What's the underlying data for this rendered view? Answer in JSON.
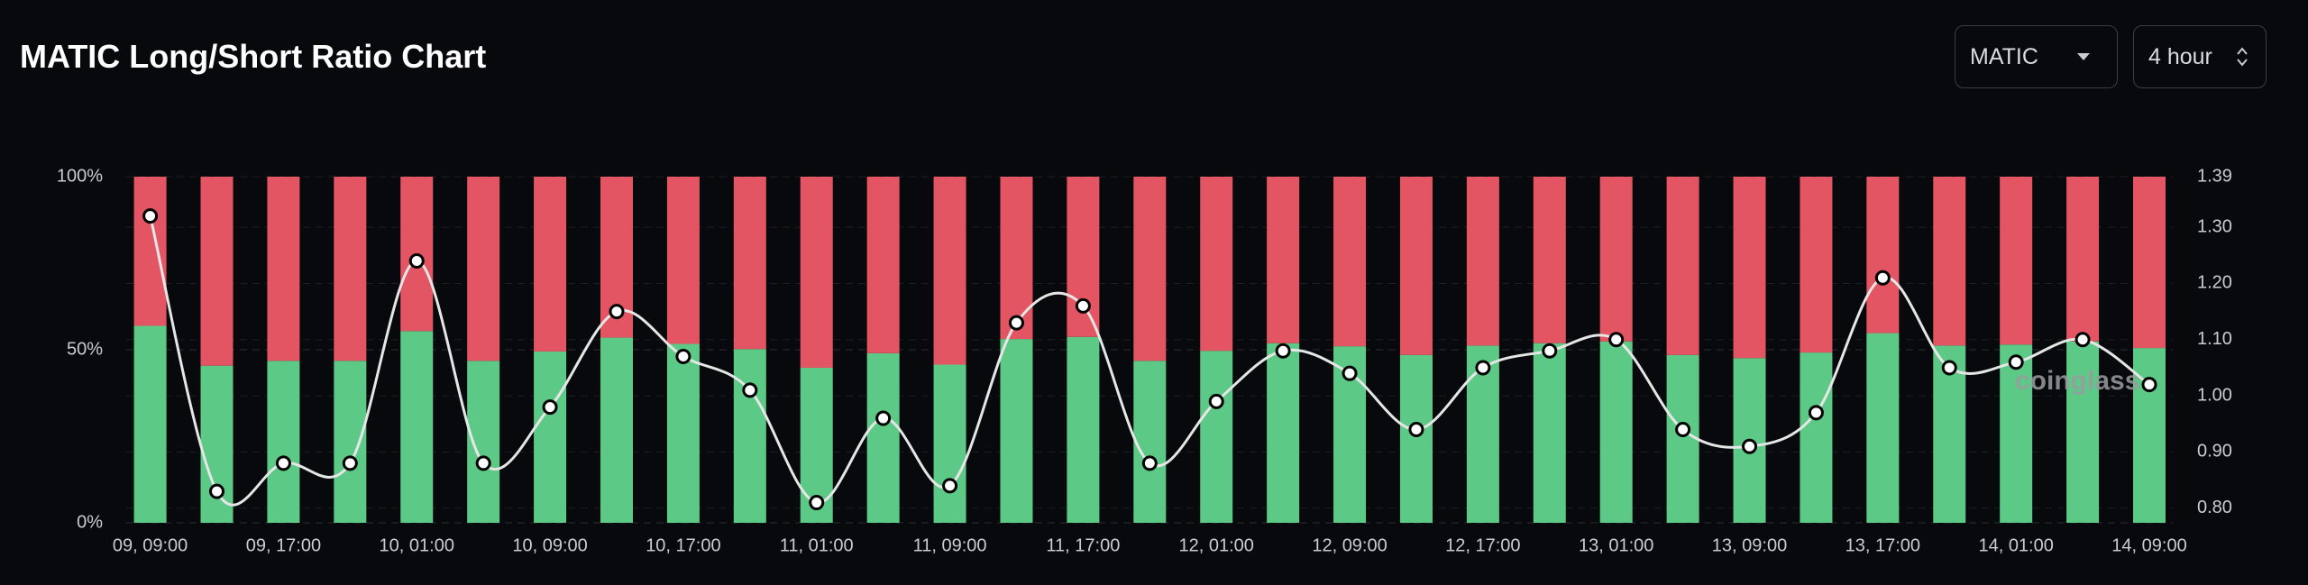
{
  "header": {
    "title": "MATIC Long/Short Ratio Chart",
    "symbol": "MATIC",
    "interval": "4 hour"
  },
  "chart_data": {
    "type": "stacked-bar-line",
    "watermark": "coinglass",
    "categories": [
      "09, 09:00",
      null,
      "09, 17:00",
      null,
      "10, 01:00",
      null,
      "10, 09:00",
      null,
      "10, 17:00",
      null,
      "11, 01:00",
      null,
      "11, 09:00",
      null,
      "11, 17:00",
      null,
      "12, 01:00",
      null,
      "12, 09:00",
      null,
      "12, 17:00",
      null,
      "13, 01:00",
      null,
      "13, 09:00",
      null,
      "13, 17:00",
      null,
      "14, 01:00",
      null,
      "14, 09:00"
    ],
    "series": [
      {
        "color": "#5cc986",
        "values": [
          56.9,
          45.4,
          46.8,
          46.8,
          55.4,
          46.8,
          49.5,
          53.5,
          51.7,
          50.2,
          44.8,
          49.0,
          45.7,
          53.1,
          53.7,
          46.8,
          49.7,
          51.9,
          51.0,
          48.5,
          51.2,
          51.9,
          52.4,
          48.5,
          47.6,
          49.2,
          54.8,
          51.2,
          51.5,
          52.4,
          50.5
        ]
      },
      {
        "color": "#e35563",
        "values": [
          43.1,
          54.6,
          53.2,
          53.2,
          44.6,
          53.2,
          50.5,
          46.5,
          48.3,
          49.8,
          55.2,
          51.0,
          54.3,
          46.9,
          46.3,
          53.2,
          50.3,
          48.1,
          49.0,
          51.5,
          48.8,
          48.1,
          47.6,
          51.5,
          52.4,
          50.8,
          45.2,
          48.8,
          48.5,
          47.6,
          49.5
        ]
      },
      {
        "color": "#e6e6e6",
        "axis": "y2",
        "values": [
          1.32,
          0.83,
          0.88,
          0.88,
          1.24,
          0.88,
          0.98,
          1.15,
          1.07,
          1.01,
          0.81,
          0.96,
          0.84,
          1.13,
          1.16,
          0.88,
          0.99,
          1.08,
          1.04,
          0.94,
          1.05,
          1.08,
          1.1,
          0.94,
          0.91,
          0.97,
          1.21,
          1.05,
          1.06,
          1.1,
          1.02
        ]
      }
    ],
    "ylim": [
      0,
      100
    ],
    "yticks": [
      {
        "value": 0,
        "label": "0%"
      },
      {
        "value": 50,
        "label": "50%"
      },
      {
        "value": 100,
        "label": "100%"
      }
    ],
    "y2lim": [
      0.774,
      1.39
    ],
    "y2ticks": [
      {
        "value": 0.8,
        "label": "0.80"
      },
      {
        "value": 0.9,
        "label": "0.90"
      },
      {
        "value": 1.0,
        "label": "1.00"
      },
      {
        "value": 1.1,
        "label": "1.10"
      },
      {
        "value": 1.2,
        "label": "1.20"
      },
      {
        "value": 1.3,
        "label": "1.30"
      },
      1.39
    ],
    "grid": true
  }
}
